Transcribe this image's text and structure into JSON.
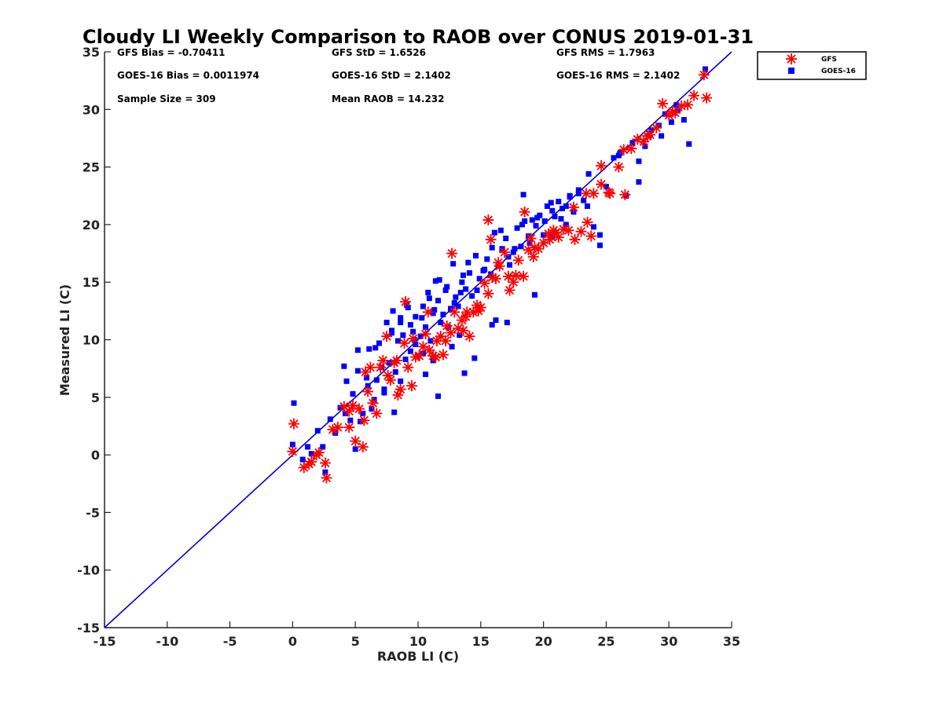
{
  "chart_data": {
    "type": "scatter",
    "title": "Cloudy LI Weekly Comparison to RAOB over CONUS 2019-01-31",
    "xlabel": "RAOB LI (C)",
    "ylabel": "Measured LI (C)",
    "xlim": [
      -15,
      35
    ],
    "ylim": [
      -15,
      35
    ],
    "xticks": [
      "-15",
      "-10",
      "-5",
      "0",
      "5",
      "10",
      "15",
      "20",
      "25",
      "30",
      "35"
    ],
    "yticks": [
      "-15",
      "-10",
      "-5",
      "0",
      "5",
      "10",
      "15",
      "20",
      "25",
      "30",
      "35"
    ],
    "grid": false,
    "legend_position": "outside-top-right",
    "stats": {
      "gfs_bias": "GFS Bias = -0.70411",
      "gfs_std": "GFS StD = 1.6526",
      "gfs_rms": "GFS RMS = 1.7963",
      "goes_bias": "GOES-16 Bias = 0.0011974",
      "goes_std": "GOES-16 StD = 2.1402",
      "goes_rms": "GOES-16 RMS = 2.1402",
      "sample_size": "Sample Size = 309",
      "mean_raob": "Mean RAOB = 14.232"
    },
    "reference_line": {
      "x": [
        -15,
        35
      ],
      "y": [
        -15,
        35
      ],
      "color": "#0000d0"
    },
    "series": [
      {
        "name": "GFS",
        "marker": "asterisk",
        "color": "#ff0000",
        "x": [
          0.0,
          0.1,
          0.9,
          1.3,
          1.5,
          1.9,
          2.1,
          2.6,
          2.7,
          3.2,
          3.6,
          4.1,
          4.5,
          4.8,
          5.0,
          5.3,
          5.6,
          5.8,
          6.0,
          6.4,
          6.7,
          7.0,
          7.2,
          7.6,
          7.8,
          8.1,
          8.4,
          8.6,
          8.9,
          9.2,
          9.5,
          9.8,
          10.1,
          10.4,
          10.6,
          10.9,
          11.2,
          11.5,
          11.8,
          12.0,
          12.3,
          12.6,
          12.9,
          13.2,
          13.5,
          13.8,
          14.1,
          14.4,
          14.7,
          15.0,
          15.3,
          15.6,
          15.9,
          16.2,
          16.5,
          16.9,
          17.3,
          17.6,
          18.0,
          18.4,
          18.8,
          19.2,
          19.6,
          20.0,
          20.4,
          20.8,
          21.2,
          21.6,
          22.0,
          22.5,
          23.0,
          23.5,
          24.0,
          24.6,
          25.2,
          26.0,
          26.5,
          27.0,
          27.5,
          28.0,
          28.5,
          29.0,
          29.5,
          30.0,
          30.5,
          31.0,
          31.5,
          32.0,
          32.8,
          7.5,
          9.0,
          10.8,
          12.7,
          13.6,
          15.6,
          16.4,
          17.2,
          18.5,
          19.3,
          20.5,
          23.4,
          24.6,
          26.4,
          4.5,
          5.7,
          6.2,
          8.3,
          9.6,
          11.4,
          12.2,
          13.9,
          14.8,
          15.8,
          17.8,
          19.0,
          21.0,
          22.4,
          23.8,
          25.3,
          28.3,
          30.3,
          33.0
        ],
        "y": [
          0.3,
          2.7,
          -1.1,
          -0.8,
          -0.6,
          0.0,
          0.2,
          -0.7,
          -2.0,
          2.2,
          2.4,
          4.2,
          2.4,
          4.3,
          1.2,
          4.0,
          0.7,
          7.2,
          5.5,
          4.5,
          3.6,
          7.6,
          8.2,
          6.9,
          6.5,
          8.0,
          5.2,
          5.7,
          9.7,
          7.6,
          6.0,
          8.5,
          8.6,
          9.4,
          10.5,
          9.1,
          8.6,
          9.9,
          10.3,
          8.7,
          11.2,
          10.6,
          12.4,
          11.0,
          11.7,
          12.0,
          10.3,
          12.4,
          13.0,
          12.8,
          14.9,
          14.0,
          15.4,
          15.3,
          16.4,
          17.6,
          14.3,
          15.0,
          16.9,
          15.5,
          17.8,
          17.2,
          17.9,
          18.4,
          19.2,
          19.5,
          18.9,
          19.6,
          19.5,
          18.7,
          19.4,
          20.2,
          22.7,
          23.5,
          22.8,
          25.0,
          22.6,
          26.6,
          27.4,
          27.2,
          27.8,
          28.4,
          30.5,
          29.5,
          29.7,
          30.3,
          30.4,
          31.2,
          33.0,
          10.3,
          13.3,
          12.4,
          17.5,
          10.8,
          20.4,
          16.7,
          15.5,
          21.1,
          18.0,
          18.7,
          22.7,
          25.1,
          26.5,
          3.8,
          3.0,
          7.6,
          8.2,
          10.1,
          8.5,
          9.9,
          12.4,
          12.5,
          18.7,
          15.6,
          18.8,
          19.3,
          21.5,
          19.0,
          22.7,
          27.7,
          29.8,
          31.0
        ]
      },
      {
        "name": "GOES-16",
        "marker": "square",
        "color": "#0000ff",
        "x": [
          0.0,
          0.1,
          0.8,
          1.2,
          1.5,
          2.0,
          2.4,
          2.6,
          3.0,
          3.4,
          3.8,
          4.2,
          4.3,
          4.6,
          4.8,
          5.0,
          5.2,
          5.4,
          5.6,
          5.9,
          6.1,
          6.3,
          6.5,
          6.7,
          6.9,
          7.1,
          7.3,
          7.5,
          7.7,
          7.9,
          8.0,
          8.2,
          8.4,
          8.6,
          8.8,
          9.0,
          9.2,
          9.4,
          9.6,
          9.8,
          10.0,
          10.2,
          10.4,
          10.6,
          10.8,
          11.0,
          11.2,
          11.4,
          11.6,
          11.8,
          12.0,
          12.2,
          12.4,
          12.6,
          12.8,
          13.0,
          13.2,
          13.4,
          13.6,
          13.8,
          14.0,
          14.3,
          14.6,
          14.9,
          15.2,
          15.5,
          15.8,
          16.1,
          16.4,
          16.7,
          17.0,
          17.3,
          17.6,
          17.9,
          18.2,
          18.5,
          18.8,
          19.1,
          19.4,
          19.7,
          20.0,
          20.3,
          20.6,
          20.9,
          21.2,
          21.5,
          21.8,
          22.1,
          22.4,
          22.8,
          23.2,
          23.6,
          24.0,
          24.5,
          25.0,
          25.6,
          26.1,
          26.6,
          27.1,
          27.6,
          28.1,
          28.6,
          29.2,
          29.7,
          30.2,
          30.7,
          31.2,
          31.6,
          32.9,
          7.9,
          8.6,
          9.1,
          9.7,
          10.3,
          10.9,
          11.3,
          11.7,
          12.3,
          12.9,
          13.5,
          14.1,
          14.7,
          15.3,
          15.9,
          16.6,
          17.2,
          17.7,
          18.3,
          18.9,
          19.5,
          20.1,
          20.7,
          21.4,
          22.1,
          22.8,
          23.5,
          24.5,
          27.6,
          29.4,
          9.4,
          10.6,
          11.6,
          13.7,
          15.9,
          18.4,
          20.7,
          4.1,
          5.2,
          6.0,
          7.3,
          8.1,
          8.6,
          10.4,
          12.7,
          14.5,
          17.1,
          19.3,
          21.8,
          26.0,
          28.4,
          30.6,
          6.6,
          9.8,
          11.2,
          13.3,
          16.2
        ],
        "y": [
          0.9,
          4.5,
          -0.4,
          0.7,
          0.1,
          2.1,
          0.7,
          -1.5,
          3.1,
          1.9,
          4.1,
          3.6,
          6.4,
          3.0,
          5.3,
          0.5,
          9.1,
          2.9,
          3.6,
          6.7,
          9.2,
          4.0,
          4.8,
          6.5,
          9.7,
          7.6,
          5.4,
          11.5,
          8.0,
          10.6,
          12.5,
          7.2,
          9.9,
          11.9,
          10.4,
          8.3,
          12.8,
          11.3,
          10.7,
          12.0,
          8.6,
          10.3,
          12.9,
          11.1,
          14.1,
          9.9,
          12.3,
          15.1,
          13.4,
          11.5,
          12.2,
          14.3,
          11.1,
          12.7,
          16.6,
          13.7,
          12.9,
          14.1,
          15.6,
          14.4,
          16.7,
          13.8,
          17.3,
          15.3,
          16.0,
          17.0,
          15.7,
          19.3,
          16.4,
          17.9,
          18.8,
          16.5,
          17.6,
          19.7,
          18.1,
          20.3,
          19.0,
          20.4,
          19.9,
          20.8,
          19.1,
          21.6,
          21.9,
          20.7,
          22.0,
          21.4,
          21.6,
          22.5,
          21.1,
          22.7,
          22.1,
          24.4,
          19.8,
          18.2,
          23.3,
          25.8,
          26.2,
          22.5,
          27.1,
          23.7,
          26.8,
          28.2,
          28.6,
          29.6,
          28.9,
          29.9,
          29.1,
          27.0,
          33.5,
          10.8,
          11.5,
          13.0,
          10.0,
          11.9,
          13.6,
          12.6,
          15.2,
          14.6,
          13.2,
          15.0,
          15.8,
          14.3,
          16.1,
          18.0,
          19.5,
          17.2,
          17.9,
          20.0,
          18.4,
          20.6,
          20.3,
          21.2,
          20.5,
          22.4,
          23.0,
          21.6,
          19.1,
          25.5,
          27.7,
          9.0,
          7.0,
          5.1,
          7.1,
          11.3,
          22.6,
          19.0,
          7.7,
          7.3,
          6.0,
          5.7,
          3.7,
          6.4,
          8.8,
          9.4,
          8.4,
          11.5,
          13.9,
          20.0,
          26.0,
          27.7,
          30.4,
          9.3,
          9.6,
          8.2,
          10.4,
          11.7
        ]
      }
    ]
  }
}
